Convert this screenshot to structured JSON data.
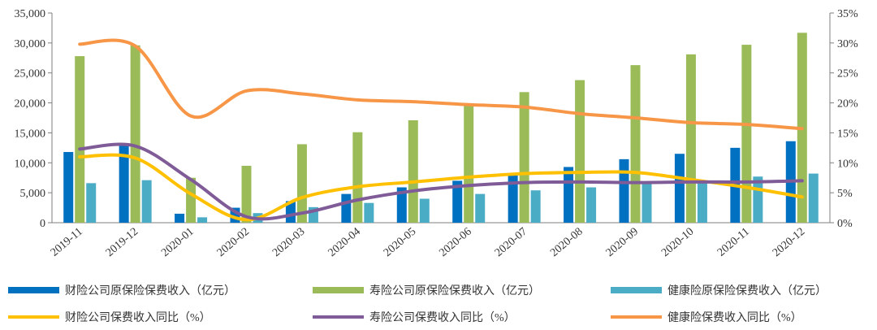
{
  "chart_data": {
    "type": "bar",
    "categories": [
      "2019-11",
      "2019-12",
      "2020-01",
      "2020-02",
      "2020-03",
      "2020-04",
      "2020-05",
      "2020-06",
      "2020-07",
      "2020-08",
      "2020-09",
      "2020-10",
      "2020-11",
      "2020-12"
    ],
    "y_left": {
      "ylim": [
        0,
        35000
      ],
      "ticks": [
        "0",
        "5,000",
        "10,000",
        "15,000",
        "20,000",
        "25,000",
        "30,000",
        "35,000"
      ]
    },
    "y_right": {
      "ylim": [
        0,
        35
      ],
      "ticks": [
        "0%",
        "5%",
        "10%",
        "15%",
        "20%",
        "25%",
        "30%",
        "35%"
      ]
    },
    "bar_series": [
      {
        "name": "财险公司原保险保费收入（亿元）",
        "color": "#0070C0",
        "values": [
          11800,
          12900,
          1500,
          2500,
          3600,
          4800,
          5900,
          7000,
          7900,
          9300,
          10600,
          11500,
          12500,
          13600
        ]
      },
      {
        "name": "寿险公司原保险保费收入（亿元）",
        "color": "#9BBB59",
        "values": [
          27800,
          29600,
          7500,
          9500,
          13100,
          15100,
          17100,
          19700,
          21800,
          23800,
          26300,
          28100,
          29700,
          31700
        ]
      },
      {
        "name": "健康险原保险保费收入（亿元）",
        "color": "#4BACC6",
        "values": [
          6600,
          7100,
          900,
          1600,
          2600,
          3300,
          4000,
          4800,
          5400,
          5900,
          6700,
          6900,
          7700,
          8200
        ]
      }
    ],
    "line_series": [
      {
        "name": "财险公司保费收入同比（%）",
        "color": "#FFC000",
        "values": [
          11.0,
          10.8,
          4.8,
          0.5,
          4.2,
          6.0,
          6.8,
          7.6,
          8.2,
          8.4,
          8.4,
          7.2,
          5.9,
          4.3
        ]
      },
      {
        "name": "寿险公司保费收入同比（%）",
        "color": "#7F5C97",
        "values": [
          12.3,
          12.8,
          7.2,
          1.0,
          1.6,
          3.8,
          5.3,
          6.2,
          6.7,
          6.8,
          6.7,
          6.8,
          6.8,
          7.0
        ]
      },
      {
        "name": "健康险保费收入同比（%）",
        "color": "#F79646",
        "values": [
          29.8,
          29.5,
          17.8,
          22.0,
          21.5,
          20.5,
          20.2,
          19.7,
          19.3,
          18.2,
          17.5,
          16.7,
          16.4,
          15.7
        ]
      }
    ]
  }
}
